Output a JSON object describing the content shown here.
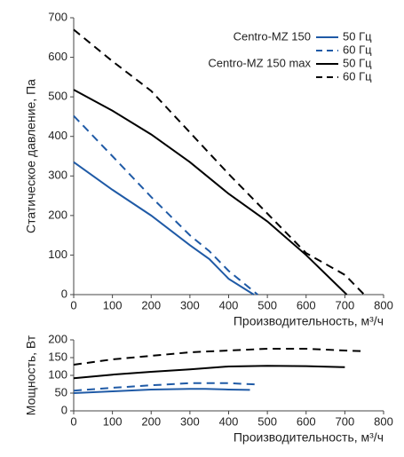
{
  "chart_data": [
    {
      "type": "line",
      "ylabel": "Статическое давление, Па",
      "xlabel": "Производительность, м³/ч",
      "xlim": [
        0,
        800
      ],
      "xticks": [
        0,
        100,
        200,
        300,
        400,
        500,
        600,
        700,
        800
      ],
      "ylim": [
        0,
        700
      ],
      "yticks": [
        0,
        100,
        200,
        300,
        400,
        500,
        600,
        700
      ],
      "legend": "upper right",
      "series": [
        {
          "group": "Centro-MZ 150",
          "name": "50 Гц",
          "color": "#1f5aa6",
          "dashed": false,
          "x": [
            0,
            100,
            200,
            300,
            350,
            400,
            465
          ],
          "values": [
            335,
            265,
            200,
            125,
            90,
            40,
            0
          ]
        },
        {
          "group": "Centro-MZ 150",
          "name": "60 Гц",
          "color": "#1f5aa6",
          "dashed": true,
          "x": [
            0,
            100,
            200,
            300,
            350,
            400,
            475
          ],
          "values": [
            452,
            350,
            247,
            150,
            110,
            60,
            0
          ]
        },
        {
          "group": "Centro-MZ 150 max",
          "name": "50 Гц",
          "color": "#000000",
          "dashed": false,
          "x": [
            0,
            100,
            200,
            300,
            400,
            500,
            600,
            705
          ],
          "values": [
            518,
            465,
            405,
            335,
            255,
            185,
            100,
            0
          ]
        },
        {
          "group": "Centro-MZ 150 max",
          "name": "60 Гц",
          "color": "#000000",
          "dashed": true,
          "x": [
            0,
            100,
            200,
            300,
            400,
            500,
            600,
            700,
            750
          ],
          "values": [
            670,
            590,
            515,
            410,
            305,
            205,
            105,
            50,
            0
          ]
        }
      ]
    },
    {
      "type": "line",
      "ylabel": "Мощность, Вт",
      "xlabel": "Производительность, м³/ч",
      "xlim": [
        0,
        800
      ],
      "xticks": [
        0,
        100,
        200,
        300,
        400,
        500,
        600,
        700,
        800
      ],
      "ylim": [
        0,
        200
      ],
      "yticks": [
        0,
        50,
        100,
        150,
        200
      ],
      "series": [
        {
          "color": "#1f5aa6",
          "dashed": false,
          "x": [
            0,
            100,
            200,
            300,
            340,
            400,
            455
          ],
          "values": [
            50,
            55,
            60,
            62,
            62,
            60,
            59
          ]
        },
        {
          "color": "#1f5aa6",
          "dashed": true,
          "x": [
            0,
            100,
            200,
            300,
            400,
            480
          ],
          "values": [
            57,
            65,
            72,
            78,
            78,
            74
          ]
        },
        {
          "color": "#000000",
          "dashed": false,
          "x": [
            0,
            100,
            200,
            300,
            400,
            500,
            600,
            700
          ],
          "values": [
            92,
            102,
            110,
            117,
            125,
            127,
            126,
            123
          ]
        },
        {
          "color": "#000000",
          "dashed": true,
          "x": [
            0,
            100,
            200,
            300,
            400,
            500,
            600,
            700,
            750
          ],
          "values": [
            130,
            145,
            155,
            165,
            170,
            175,
            175,
            170,
            168
          ]
        }
      ]
    }
  ]
}
